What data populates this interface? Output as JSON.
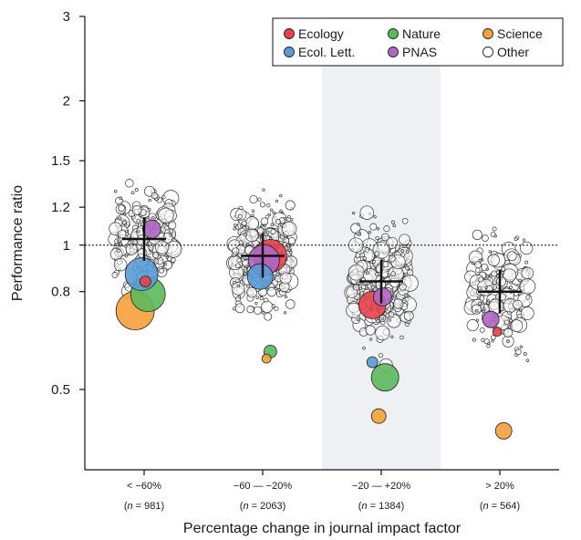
{
  "chart_data": {
    "type": "scatter",
    "title": "",
    "xlabel": "Percentage change in journal impact factor",
    "ylabel": "Performance ratio",
    "y_scale": "log",
    "ylim": [
      0.34,
      3.0
    ],
    "yticks": [
      {
        "value": 0.5,
        "label": "0.5"
      },
      {
        "value": 0.8,
        "label": "0.8"
      },
      {
        "value": 1,
        "label": "1"
      },
      {
        "value": 1.2,
        "label": "1.2"
      },
      {
        "value": 1.5,
        "label": "1.5"
      },
      {
        "value": 2,
        "label": "2"
      },
      {
        "value": 3,
        "label": "3"
      }
    ],
    "reference_line": 1,
    "categories": [
      {
        "label": "< −60%",
        "n_prefix": "(",
        "n_var": "n",
        "n_text": " = 981)",
        "shaded": false,
        "center": 1.03
      },
      {
        "label": "−60 — −20%",
        "n_prefix": "(",
        "n_var": "n",
        "n_text": " = 2063)",
        "shaded": false,
        "center": 0.95
      },
      {
        "label": "−20 — +20%",
        "n_prefix": "(",
        "n_var": "n",
        "n_text": " = 1384)",
        "shaded": true,
        "center": 0.84
      },
      {
        "label": "> 20%",
        "n_prefix": "(",
        "n_var": "n",
        "n_text": " = 564)",
        "shaded": false,
        "center": 0.8
      }
    ],
    "legend": {
      "placement": "top-right",
      "items": [
        {
          "key": "ecology",
          "label": "Ecology",
          "color": "#e8414b"
        },
        {
          "key": "nature",
          "label": "Nature",
          "color": "#5cb85c"
        },
        {
          "key": "science",
          "label": "Science",
          "color": "#f5a13a"
        },
        {
          "key": "ecollett",
          "label": "Ecol. Lett.",
          "color": "#5a9bd5"
        },
        {
          "key": "pnas",
          "label": "PNAS",
          "color": "#b066c4"
        },
        {
          "key": "other",
          "label": "Other",
          "color": "#ffffff"
        }
      ]
    },
    "journal_points": [
      {
        "group": 0,
        "journal": "pnas",
        "y": 1.08,
        "size": 10
      },
      {
        "group": 0,
        "journal": "ecollett",
        "y": 0.87,
        "size": 18
      },
      {
        "group": 0,
        "journal": "ecology",
        "y": 0.84,
        "size": 6
      },
      {
        "group": 0,
        "journal": "nature",
        "y": 0.79,
        "size": 19
      },
      {
        "group": 0,
        "journal": "science",
        "y": 0.73,
        "size": 21
      },
      {
        "group": 1,
        "journal": "ecology",
        "y": 0.95,
        "size": 18
      },
      {
        "group": 1,
        "journal": "pnas",
        "y": 0.93,
        "size": 17
      },
      {
        "group": 1,
        "journal": "ecollett",
        "y": 0.86,
        "size": 14
      },
      {
        "group": 1,
        "journal": "nature",
        "y": 0.6,
        "size": 7
      },
      {
        "group": 1,
        "journal": "science",
        "y": 0.58,
        "size": 5
      },
      {
        "group": 2,
        "journal": "pnas",
        "y": 0.78,
        "size": 10
      },
      {
        "group": 2,
        "journal": "ecology",
        "y": 0.75,
        "size": 15
      },
      {
        "group": 2,
        "journal": "ecollett",
        "y": 0.57,
        "size": 6
      },
      {
        "group": 2,
        "journal": "nature",
        "y": 0.53,
        "size": 15
      },
      {
        "group": 2,
        "journal": "science",
        "y": 0.44,
        "size": 8
      },
      {
        "group": 3,
        "journal": "pnas",
        "y": 0.7,
        "size": 9
      },
      {
        "group": 3,
        "journal": "ecology",
        "y": 0.66,
        "size": 5
      },
      {
        "group": 3,
        "journal": "science",
        "y": 0.41,
        "size": 9
      }
    ]
  }
}
